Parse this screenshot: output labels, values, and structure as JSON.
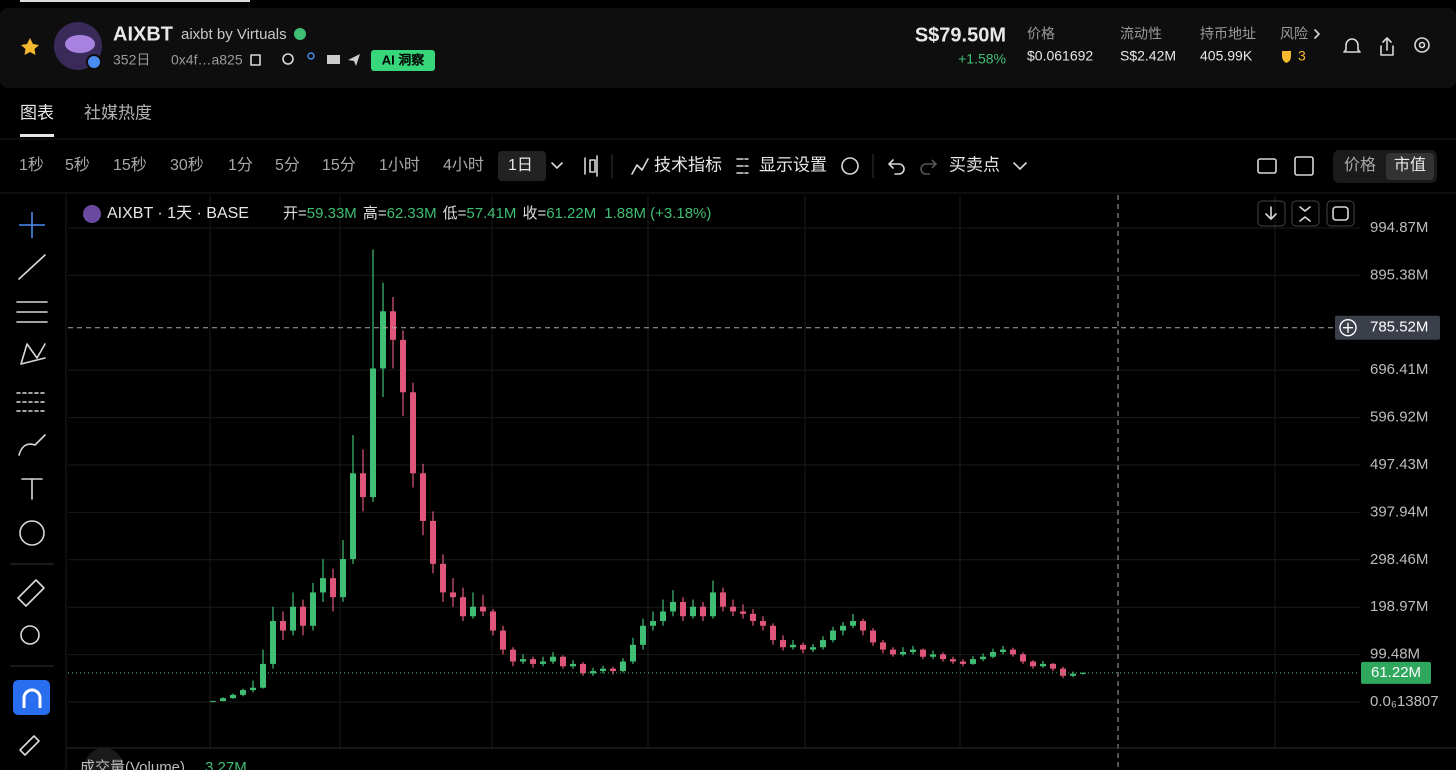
{
  "header": {
    "name": "AIXBT",
    "subtitle": "aixbt by Virtuals",
    "age": "352日",
    "address": "0x4f…a825",
    "badge": "AI 洞察",
    "market_cap": "S$79.50M",
    "change": "+1.58%",
    "stats": [
      {
        "label": "价格",
        "value": "$0.061692"
      },
      {
        "label": "流动性",
        "value": "S$2.42M"
      },
      {
        "label": "持币地址",
        "value": "405.99K"
      },
      {
        "label": "风险",
        "value": "3"
      }
    ]
  },
  "tabs": [
    "图表",
    "社媒热度"
  ],
  "toolbar": {
    "intervals": [
      "1秒",
      "5秒",
      "15秒",
      "30秒",
      "1分",
      "5分",
      "15分",
      "1小时",
      "4小时",
      "1日"
    ],
    "buttons": [
      "技术指标",
      "显示设置",
      "买卖点"
    ],
    "toggle": [
      "价格",
      "市值"
    ]
  },
  "chart_data": {
    "type": "candlestick",
    "title": "AIXBT · 1天 · BASE",
    "ohlc": [
      {
        "label": "开=",
        "value": "59.33M"
      },
      {
        "label": "高=",
        "value": "62.33M"
      },
      {
        "label": "低=",
        "value": "57.41M"
      },
      {
        "label": "收=",
        "value": "61.22M"
      }
    ],
    "change": "1.88M (+3.18%)",
    "up_color": "#3fbf74",
    "down_color": "#e0567a",
    "ylim": [
      -96.5,
      1064
    ],
    "yticks": [
      {
        "value": 994.87,
        "label": "994.87M"
      },
      {
        "value": 895.38,
        "label": "895.38M"
      },
      {
        "value": 696.41,
        "label": "696.41M"
      },
      {
        "value": 596.92,
        "label": "596.92M"
      },
      {
        "value": 497.43,
        "label": "497.43M"
      },
      {
        "value": 397.94,
        "label": "397.94M"
      },
      {
        "value": 298.46,
        "label": "298.46M"
      },
      {
        "value": 198.97,
        "label": "198.97M"
      },
      {
        "value": 99.48,
        "label": "99.48M"
      },
      {
        "value": 1.3807e-13,
        "label": "0.0₆13807"
      }
    ],
    "grid": true,
    "crosshair": {
      "value": 785.52,
      "label": "785.52M"
    },
    "last_price": {
      "value": 61.22,
      "label": "61.22M"
    },
    "volume": {
      "label": "成交量(Volume)",
      "value": "3.27M"
    },
    "candles": [
      [
        0.5,
        3,
        0.3,
        2
      ],
      [
        2,
        10,
        1.5,
        8
      ],
      [
        8,
        18,
        7,
        15
      ],
      [
        15,
        28,
        12,
        25
      ],
      [
        25,
        45,
        20,
        30
      ],
      [
        30,
        110,
        28,
        80
      ],
      [
        80,
        200,
        70,
        170
      ],
      [
        170,
        190,
        130,
        150
      ],
      [
        150,
        230,
        140,
        200
      ],
      [
        200,
        215,
        140,
        160
      ],
      [
        160,
        250,
        150,
        230
      ],
      [
        230,
        300,
        210,
        260
      ],
      [
        260,
        280,
        190,
        220
      ],
      [
        220,
        340,
        210,
        300
      ],
      [
        300,
        560,
        290,
        480
      ],
      [
        480,
        530,
        400,
        430
      ],
      [
        430,
        950,
        420,
        700
      ],
      [
        700,
        880,
        640,
        820
      ],
      [
        820,
        850,
        700,
        760
      ],
      [
        760,
        780,
        600,
        650
      ],
      [
        650,
        670,
        450,
        480
      ],
      [
        480,
        500,
        350,
        380
      ],
      [
        380,
        400,
        270,
        290
      ],
      [
        290,
        310,
        210,
        230
      ],
      [
        230,
        260,
        200,
        220
      ],
      [
        220,
        240,
        170,
        180
      ],
      [
        180,
        230,
        175,
        200
      ],
      [
        200,
        225,
        180,
        190
      ],
      [
        190,
        195,
        140,
        150
      ],
      [
        150,
        160,
        100,
        110
      ],
      [
        110,
        115,
        75,
        85
      ],
      [
        85,
        100,
        80,
        90
      ],
      [
        90,
        95,
        72,
        80
      ],
      [
        80,
        95,
        75,
        85
      ],
      [
        85,
        105,
        80,
        95
      ],
      [
        95,
        98,
        70,
        75
      ],
      [
        75,
        88,
        70,
        80
      ],
      [
        80,
        84,
        55,
        60
      ],
      [
        60,
        72,
        55,
        65
      ],
      [
        65,
        76,
        60,
        70
      ],
      [
        70,
        74,
        58,
        65
      ],
      [
        65,
        92,
        62,
        85
      ],
      [
        85,
        135,
        80,
        120
      ],
      [
        120,
        175,
        110,
        160
      ],
      [
        160,
        190,
        150,
        170
      ],
      [
        170,
        215,
        160,
        190
      ],
      [
        190,
        235,
        180,
        210
      ],
      [
        210,
        220,
        170,
        180
      ],
      [
        180,
        215,
        175,
        200
      ],
      [
        200,
        210,
        170,
        180
      ],
      [
        180,
        255,
        175,
        230
      ],
      [
        230,
        240,
        190,
        200
      ],
      [
        200,
        215,
        180,
        190
      ],
      [
        190,
        205,
        175,
        185
      ],
      [
        185,
        195,
        160,
        170
      ],
      [
        170,
        180,
        150,
        160
      ],
      [
        160,
        165,
        120,
        130
      ],
      [
        130,
        140,
        108,
        115
      ],
      [
        115,
        130,
        110,
        120
      ],
      [
        120,
        125,
        102,
        110
      ],
      [
        110,
        122,
        105,
        115
      ],
      [
        115,
        138,
        110,
        130
      ],
      [
        130,
        158,
        125,
        150
      ],
      [
        150,
        168,
        140,
        160
      ],
      [
        160,
        185,
        155,
        170
      ],
      [
        170,
        175,
        140,
        150
      ],
      [
        150,
        155,
        118,
        125
      ],
      [
        125,
        130,
        102,
        110
      ],
      [
        110,
        115,
        95,
        100
      ],
      [
        100,
        115,
        96,
        105
      ],
      [
        105,
        118,
        100,
        110
      ],
      [
        110,
        112,
        90,
        95
      ],
      [
        95,
        108,
        90,
        100
      ],
      [
        100,
        104,
        85,
        90
      ],
      [
        90,
        95,
        80,
        85
      ],
      [
        85,
        90,
        75,
        80
      ],
      [
        80,
        96,
        78,
        90
      ],
      [
        90,
        102,
        86,
        95
      ],
      [
        95,
        112,
        92,
        105
      ],
      [
        105,
        118,
        100,
        110
      ],
      [
        110,
        114,
        95,
        100
      ],
      [
        100,
        104,
        80,
        85
      ],
      [
        85,
        88,
        70,
        75
      ],
      [
        75,
        86,
        72,
        80
      ],
      [
        80,
        82,
        65,
        70
      ],
      [
        70,
        74,
        50,
        55
      ],
      [
        55,
        64,
        52,
        59.33
      ],
      [
        59.33,
        62.33,
        57.41,
        61.22
      ]
    ]
  }
}
